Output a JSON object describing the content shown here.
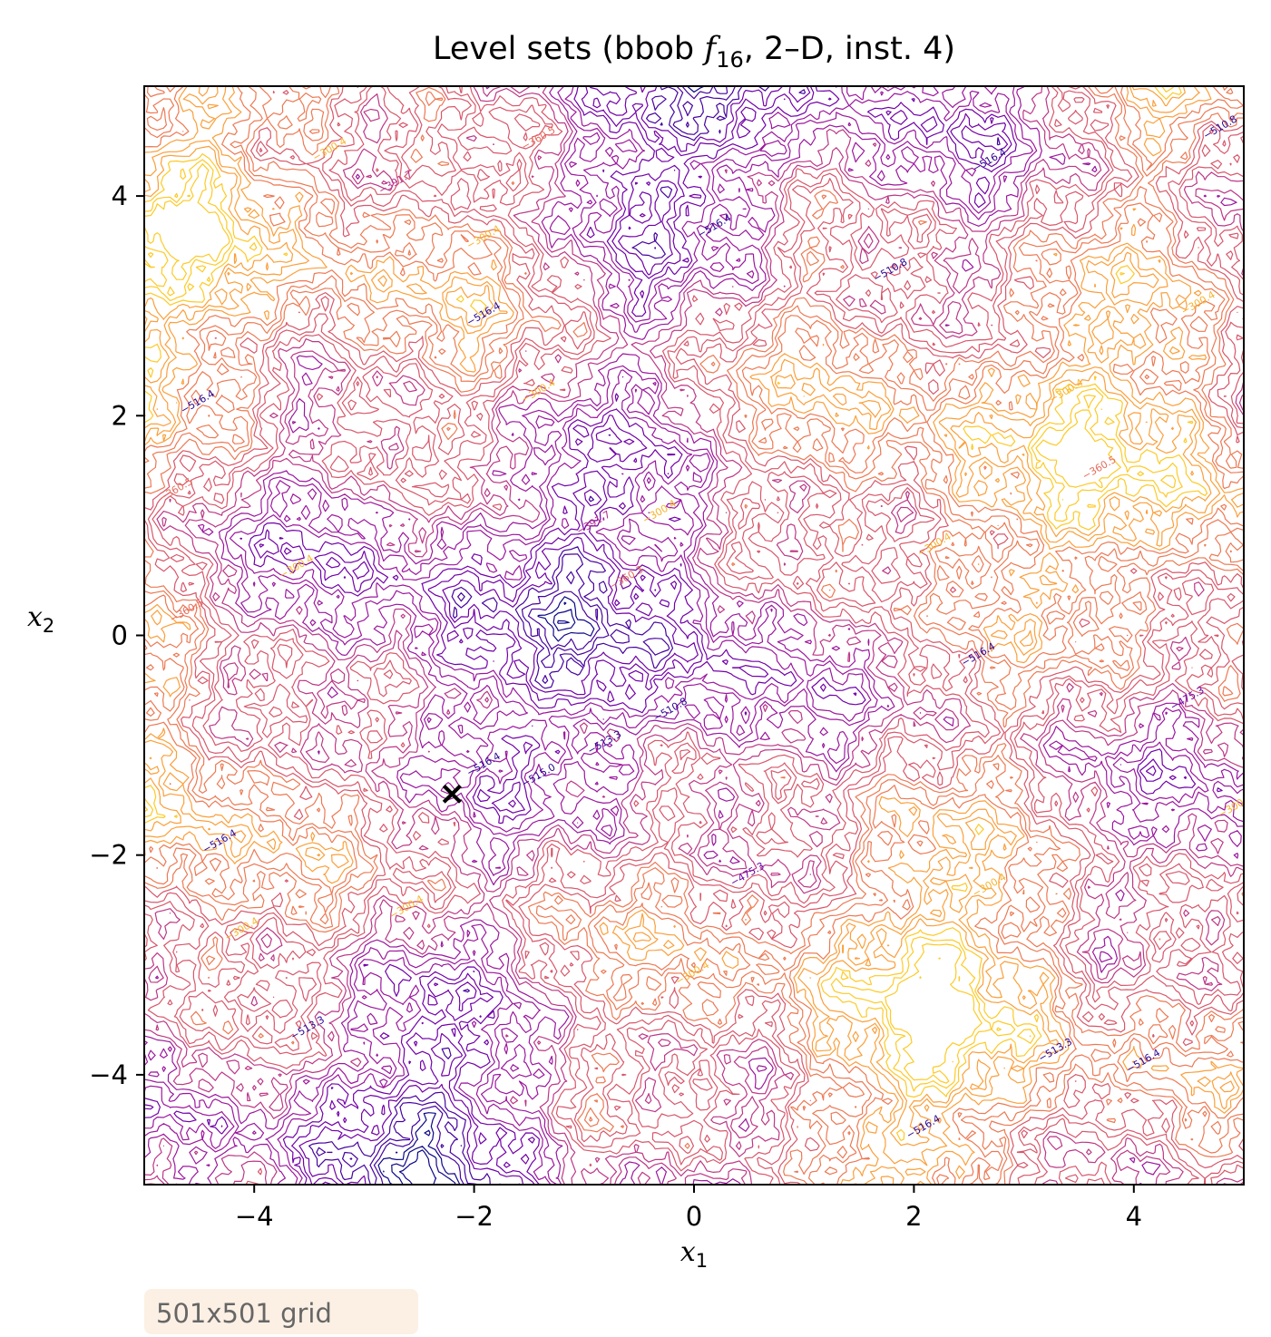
{
  "chart_data": {
    "type": "contour",
    "title": {
      "prefix": "Level sets (bbob ",
      "func_letter": "f",
      "func_sub": "16",
      "suffix": ", 2–D, inst. 4)"
    },
    "xlabel": {
      "var": "x",
      "sub": "1"
    },
    "ylabel": {
      "var": "x",
      "sub": "2"
    },
    "xlim": [
      -5,
      5
    ],
    "ylim": [
      -5,
      5
    ],
    "xticks": [
      {
        "value": -4,
        "label": "−4"
      },
      {
        "value": -2,
        "label": "−2"
      },
      {
        "value": 0,
        "label": "0"
      },
      {
        "value": 2,
        "label": "2"
      },
      {
        "value": 4,
        "label": "4"
      }
    ],
    "yticks": [
      {
        "value": -4,
        "label": "−4"
      },
      {
        "value": -2,
        "label": "−2"
      },
      {
        "value": 0,
        "label": "0"
      },
      {
        "value": 2,
        "label": "2"
      },
      {
        "value": 4,
        "label": "4"
      }
    ],
    "colormap": "plasma",
    "level_colors": [
      "#0d0887",
      "#46039f",
      "#7201a8",
      "#9c179e",
      "#bd3786",
      "#d8576b",
      "#ed7953",
      "#fb9f3a",
      "#fdca26",
      "#f0f921"
    ],
    "level_labels": [
      {
        "text": "−516.4",
        "x": 0.2,
        "y": 3.7
      },
      {
        "text": "−516.4",
        "x": -1.9,
        "y": 2.9
      },
      {
        "text": "−516.4",
        "x": -4.5,
        "y": 2.1
      },
      {
        "text": "−516.4",
        "x": 2.7,
        "y": 4.3
      },
      {
        "text": "−516.4",
        "x": 2.6,
        "y": -0.2
      },
      {
        "text": "−516.4",
        "x": -1.9,
        "y": -1.2
      },
      {
        "text": "−516.4",
        "x": -4.3,
        "y": -1.9
      },
      {
        "text": "−516.4",
        "x": 2.1,
        "y": -4.5
      },
      {
        "text": "−516.4",
        "x": 4.1,
        "y": -3.9
      },
      {
        "text": "−510.8",
        "x": 1.8,
        "y": 3.3
      },
      {
        "text": "−510.8",
        "x": -0.2,
        "y": -0.7
      },
      {
        "text": "−300.4",
        "x": -1.4,
        "y": 2.2
      },
      {
        "text": "−300.4",
        "x": -3.6,
        "y": 0.6
      },
      {
        "text": "−300.4",
        "x": -0.3,
        "y": 1.1
      },
      {
        "text": "−300.4",
        "x": 3.4,
        "y": 2.2
      },
      {
        "text": "−300.4",
        "x": 2.7,
        "y": -2.3
      },
      {
        "text": "−300.4",
        "x": 0.0,
        "y": -3.1
      },
      {
        "text": "−300.4",
        "x": -2.6,
        "y": -2.5
      },
      {
        "text": "−300.4",
        "x": -4.1,
        "y": -2.7
      },
      {
        "text": "−300.4",
        "x": -1.9,
        "y": 3.6
      },
      {
        "text": "−300.4",
        "x": 2.2,
        "y": 0.8
      },
      {
        "text": "−300.4",
        "x": 4.6,
        "y": 3.0
      },
      {
        "text": "−300.4",
        "x": -3.3,
        "y": 4.4
      },
      {
        "text": "−300",
        "x": 4.9,
        "y": -1.6
      },
      {
        "text": "−360.5",
        "x": -4.7,
        "y": 1.3
      },
      {
        "text": "−360.5",
        "x": -4.6,
        "y": 0.2
      },
      {
        "text": "−360.5",
        "x": -1.4,
        "y": 4.5
      },
      {
        "text": "−360.5",
        "x": 3.7,
        "y": 1.5
      },
      {
        "text": "−360.3",
        "x": -0.6,
        "y": 0.5
      },
      {
        "text": "−391.7",
        "x": -0.9,
        "y": 1.0
      },
      {
        "text": "−391.7",
        "x": -2.7,
        "y": 4.1
      },
      {
        "text": "−475.3",
        "x": 0.5,
        "y": -2.2
      },
      {
        "text": "−513.3",
        "x": -0.8,
        "y": -1.0
      },
      {
        "text": "−513.3",
        "x": 3.3,
        "y": -3.8
      },
      {
        "text": "−510.8",
        "x": 4.8,
        "y": 4.6
      },
      {
        "text": "−515.0",
        "x": -1.4,
        "y": -1.3
      },
      {
        "text": "−513.3",
        "x": -3.5,
        "y": -3.6
      },
      {
        "text": "−475.3",
        "x": 4.5,
        "y": -0.6
      }
    ],
    "minimum": {
      "x": -2.2,
      "y": -1.44
    },
    "annotation": "501x501 grid"
  }
}
